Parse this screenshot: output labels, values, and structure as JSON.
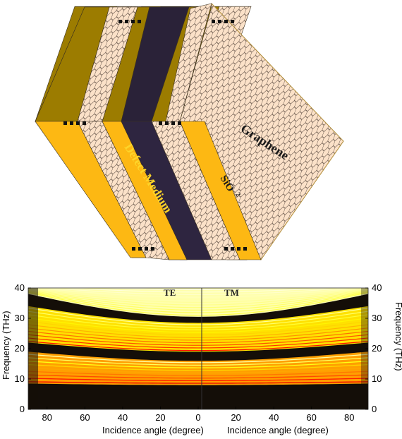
{
  "diagram": {
    "labels": {
      "graphene": "Graphene",
      "defect": "Defect Medium",
      "sio2": "SiO",
      "sio2_sub": "2"
    },
    "colors": {
      "gold_face": "#fdb813",
      "gold_top": "#9c7c00",
      "defect": "#2e2540",
      "graphene": "#fbe1c8",
      "hex_stroke": "#5a4a40"
    }
  },
  "chart_data": {
    "type": "heatmap",
    "xlabel_left": "Incidence angle (degree)",
    "xlabel_right": "Incidence angle (degree)",
    "ylabel_left": "Frequency (THz)",
    "ylabel_right": "Frequency (THz)",
    "panel_left_label": "TE",
    "panel_right_label": "TM",
    "xlim_left": [
      90,
      0
    ],
    "xlim_right": [
      0,
      90
    ],
    "ylim": [
      0,
      40
    ],
    "x_ticks_left": [
      "80",
      "60",
      "40",
      "20",
      "0"
    ],
    "x_ticks_right": [
      "20",
      "40",
      "60",
      "80"
    ],
    "y_ticks": [
      "0",
      "10",
      "20",
      "30",
      "40"
    ],
    "band_gaps_thz": [
      {
        "name": "low",
        "from": 0,
        "to": 8
      },
      {
        "name": "middle",
        "at_normal": [
          16,
          19
        ],
        "at_90": [
          19,
          22
        ]
      },
      {
        "name": "upper",
        "at_normal": [
          28.5,
          30.5
        ],
        "at_90": [
          34,
          38
        ]
      }
    ],
    "colormap": "hot"
  }
}
